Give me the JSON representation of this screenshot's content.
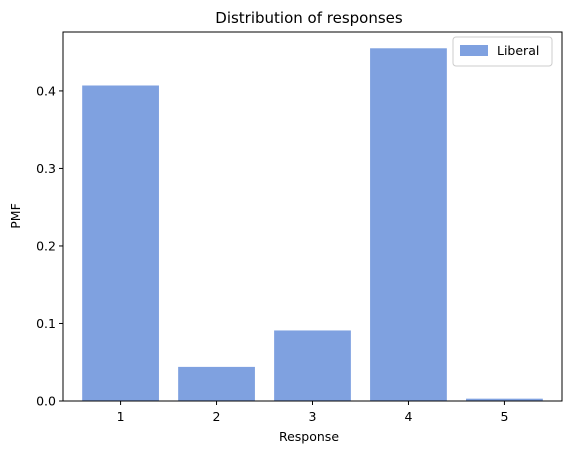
{
  "chart_data": {
    "type": "bar",
    "title": "Distribution of responses",
    "xlabel": "Response",
    "ylabel": "PMF",
    "categories": [
      "1",
      "2",
      "3",
      "4",
      "5"
    ],
    "series": [
      {
        "name": "Liberal",
        "color": "#7fa1e0",
        "values": [
          0.407,
          0.044,
          0.091,
          0.455,
          0.003
        ]
      }
    ],
    "ylim": [
      0,
      0.476
    ],
    "yticks": [
      "0.0",
      "0.1",
      "0.2",
      "0.3",
      "0.4"
    ],
    "ytick_values": [
      0.0,
      0.1,
      0.2,
      0.3,
      0.4
    ],
    "grid": false,
    "legend": "top-right"
  }
}
